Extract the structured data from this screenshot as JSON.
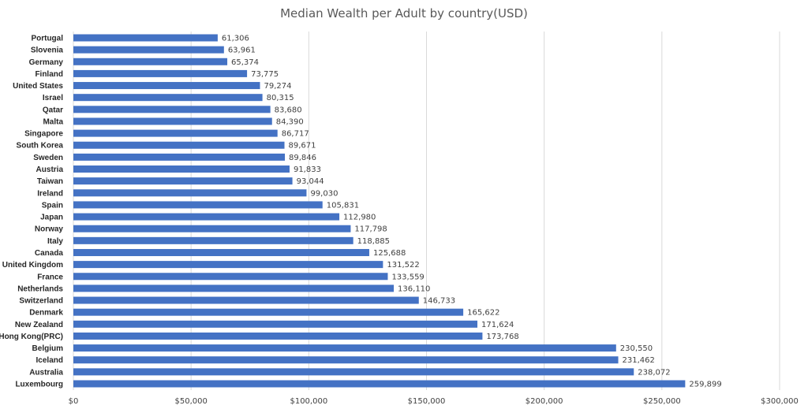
{
  "chart_data": {
    "type": "bar",
    "orientation": "horizontal",
    "title": "Median Wealth per Adult by country(USD)",
    "xlabel": "",
    "ylabel": "",
    "xlim": [
      0,
      300000
    ],
    "grid": true,
    "legend": "none",
    "bar_color": "#4472c4",
    "grid_color": "#d9d9d9",
    "ticks": [
      {
        "value": 0,
        "label": "$0"
      },
      {
        "value": 50000,
        "label": "$50,000"
      },
      {
        "value": 100000,
        "label": "$100,000"
      },
      {
        "value": 150000,
        "label": "$150,000"
      },
      {
        "value": 200000,
        "label": "$200,000"
      },
      {
        "value": 250000,
        "label": "$250,000"
      },
      {
        "value": 300000,
        "label": "$300,000"
      }
    ],
    "categories": [
      "Portugal",
      "Slovenia",
      "Germany",
      "Finland",
      "United States",
      "Israel",
      "Qatar",
      "Malta",
      "Singapore",
      "South Korea",
      "Sweden",
      "Austria",
      "Taiwan",
      "Ireland",
      "Spain",
      "Japan",
      "Norway",
      "Italy",
      "Canada",
      "United Kingdom",
      "France",
      "Netherlands",
      "Switzerland",
      "Denmark",
      "New Zealand",
      "Hong Kong(PRC)",
      "Belgium",
      "Iceland",
      "Australia",
      "Luxembourg"
    ],
    "values": [
      61306,
      63961,
      65374,
      73775,
      79274,
      80315,
      83680,
      84390,
      86717,
      89671,
      89846,
      91833,
      93044,
      99030,
      105831,
      112980,
      117798,
      118885,
      125688,
      131522,
      133559,
      136110,
      146733,
      165622,
      171624,
      173768,
      230550,
      231462,
      238072,
      259899
    ],
    "value_labels": [
      "61,306",
      "63,961",
      "65,374",
      "73,775",
      "79,274",
      "80,315",
      "83,680",
      "84,390",
      "86,717",
      "89,671",
      "89,846",
      "91,833",
      "93,044",
      "99,030",
      "105,831",
      "112,980",
      "117,798",
      "118,885",
      "125,688",
      "131,522",
      "133,559",
      "136,110",
      "146,733",
      "165,622",
      "171,624",
      "173,768",
      "230,550",
      "231,462",
      "238,072",
      "259,899"
    ]
  }
}
